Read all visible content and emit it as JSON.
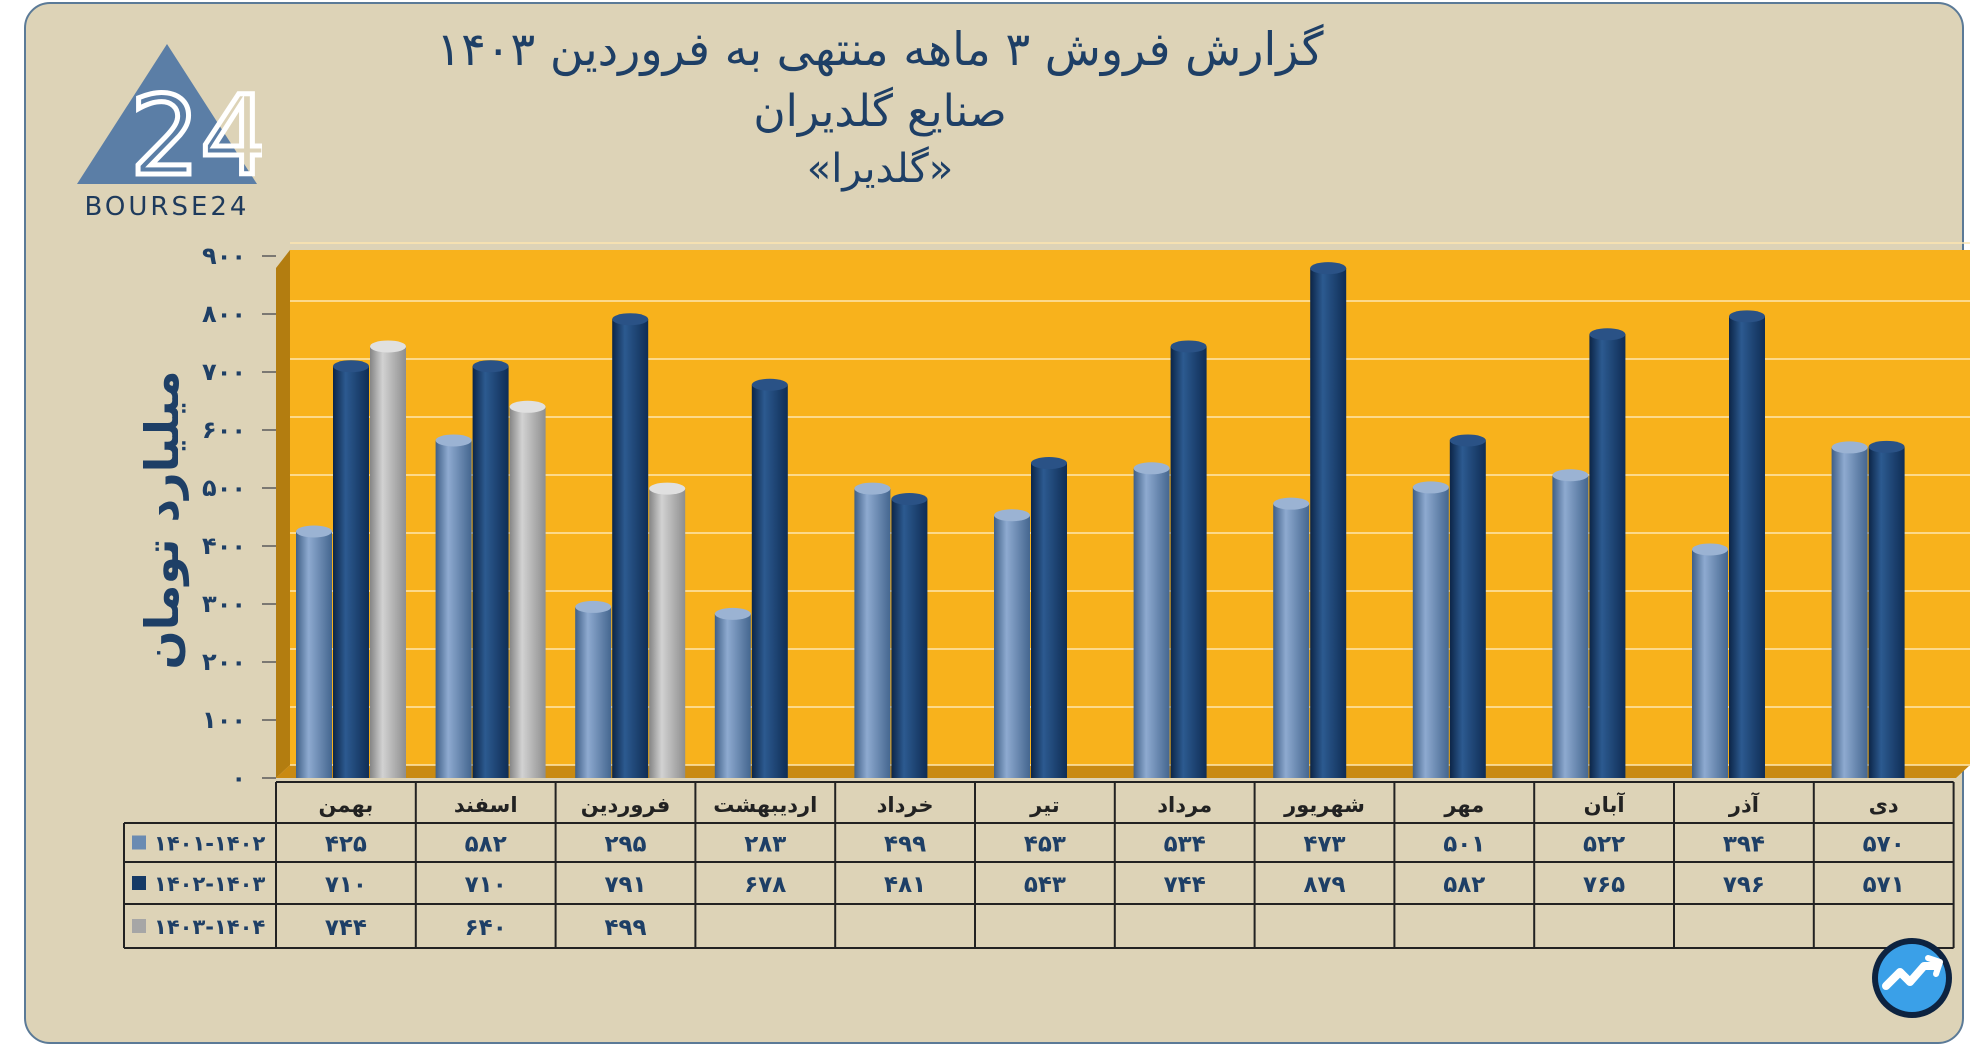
{
  "header": {
    "title_line1": "گزارش  فروش ۳ ماهه منتهی به فروردین ۱۴۰۳",
    "title_line2": "صنایع گلدیران",
    "title_line3": "«گلدیرا»"
  },
  "logo": {
    "text": "BOURSE24",
    "digits": "24"
  },
  "colors": {
    "panel_bg": "#ddd3b7",
    "plot_bg": "#f8b21c",
    "series_light_blue": "#6a8bb2",
    "series_dark_blue": "#163a66",
    "series_gray": "#a6a6a6",
    "text_dark_blue": "#1e3f66"
  },
  "chart_data": {
    "type": "bar",
    "title": "گزارش  فروش ۳ ماهه منتهی به فروردین ۱۴۰۳ - صنایع گلدیران «گلدیرا»",
    "ylabel": "میلیارد تومان",
    "xlabel": "",
    "ylim": [
      0,
      900
    ],
    "yticks": [
      "۰",
      "۱۰۰",
      "۲۰۰",
      "۳۰۰",
      "۴۰۰",
      "۵۰۰",
      "۶۰۰",
      "۷۰۰",
      "۸۰۰",
      "۹۰۰"
    ],
    "ytick_values": [
      0,
      100,
      200,
      300,
      400,
      500,
      600,
      700,
      800,
      900
    ],
    "categories": [
      "بهمن",
      "اسفند",
      "فروردین",
      "اردیبهشت",
      "خرداد",
      "تیر",
      "مرداد",
      "شهریور",
      "مهر",
      "آبان",
      "آذر",
      "دی"
    ],
    "series": [
      {
        "name": "۱۴۰۱-۱۴۰۲",
        "color": "#6a8bb2",
        "values": [
          425,
          582,
          295,
          283,
          499,
          453,
          534,
          473,
          501,
          522,
          394,
          570
        ],
        "labels": [
          "۴۲۵",
          "۵۸۲",
          "۲۹۵",
          "۲۸۳",
          "۴۹۹",
          "۴۵۳",
          "۵۳۴",
          "۴۷۳",
          "۵۰۱",
          "۵۲۲",
          "۳۹۴",
          "۵۷۰"
        ]
      },
      {
        "name": "۱۴۰۲-۱۴۰۳",
        "color": "#163a66",
        "values": [
          710,
          710,
          791,
          678,
          481,
          543,
          744,
          879,
          582,
          765,
          796,
          571
        ],
        "labels": [
          "۷۱۰",
          "۷۱۰",
          "۷۹۱",
          "۶۷۸",
          "۴۸۱",
          "۵۴۳",
          "۷۴۴",
          "۸۷۹",
          "۵۸۲",
          "۷۶۵",
          "۷۹۶",
          "۵۷۱"
        ]
      },
      {
        "name": "۱۴۰۳-۱۴۰۴",
        "color": "#a6a6a6",
        "values": [
          744,
          640,
          499,
          null,
          null,
          null,
          null,
          null,
          null,
          null,
          null,
          null
        ],
        "labels": [
          "۷۴۴",
          "۶۴۰",
          "۴۹۹",
          "",
          "",
          "",
          "",
          "",
          "",
          "",
          "",
          ""
        ]
      }
    ]
  }
}
